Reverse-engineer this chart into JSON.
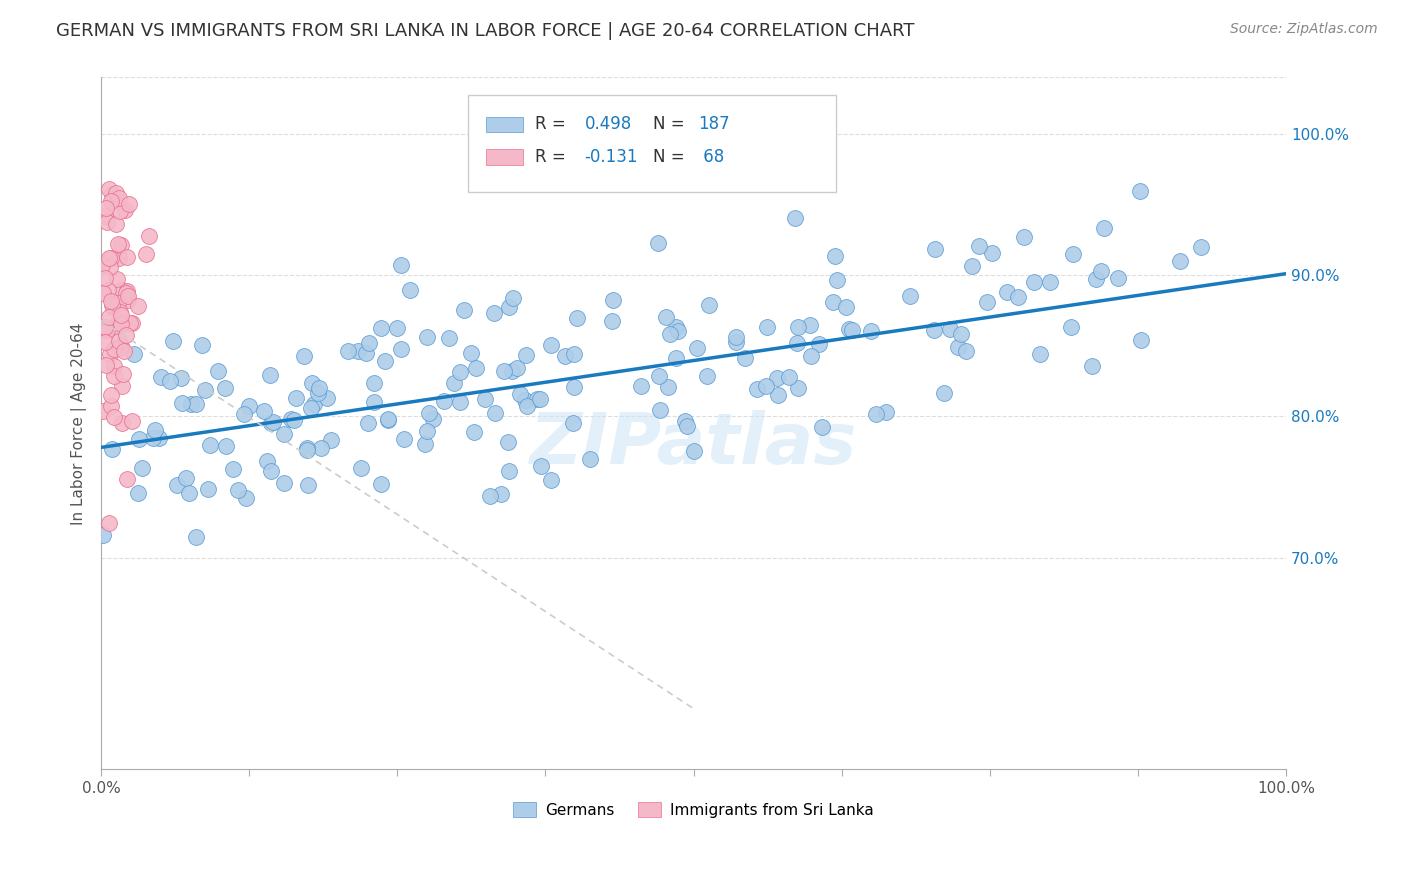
{
  "title": "GERMAN VS IMMIGRANTS FROM SRI LANKA IN LABOR FORCE | AGE 20-64 CORRELATION CHART",
  "source": "Source: ZipAtlas.com",
  "ylabel": "In Labor Force | Age 20-64",
  "xlim": [
    0.0,
    1.0
  ],
  "ylim": [
    0.55,
    1.04
  ],
  "xticks": [
    0.0,
    0.125,
    0.25,
    0.375,
    0.5,
    0.625,
    0.75,
    0.875,
    1.0
  ],
  "xticklabels_show": [
    "0.0%",
    "100.0%"
  ],
  "ytick_positions": [
    0.7,
    0.8,
    0.9,
    1.0
  ],
  "ytick_labels": [
    "70.0%",
    "80.0%",
    "90.0%",
    "100.0%"
  ],
  "legend_label_1": "Germans",
  "legend_label_2": "Immigrants from Sri Lanka",
  "blue_color": "#aecde8",
  "blue_edge_color": "#5b9bd5",
  "pink_color": "#f4b8c8",
  "pink_edge_color": "#e87090",
  "trendline_blue": "#1a7abf",
  "trendline_pink": "#cccccc",
  "background": "#ffffff",
  "watermark": "ZIPatlas",
  "blue_R": 0.498,
  "blue_N": 187,
  "pink_R": -0.131,
  "pink_N": 68,
  "blue_slope": 0.123,
  "blue_intercept": 0.778,
  "pink_slope": -0.55,
  "pink_intercept": 0.868,
  "grid_color": "#dddddd",
  "title_fontsize": 13,
  "axis_label_fontsize": 11,
  "tick_fontsize": 11,
  "source_fontsize": 10,
  "legend_r_color": "#333333",
  "legend_n_color": "#1a7abf"
}
